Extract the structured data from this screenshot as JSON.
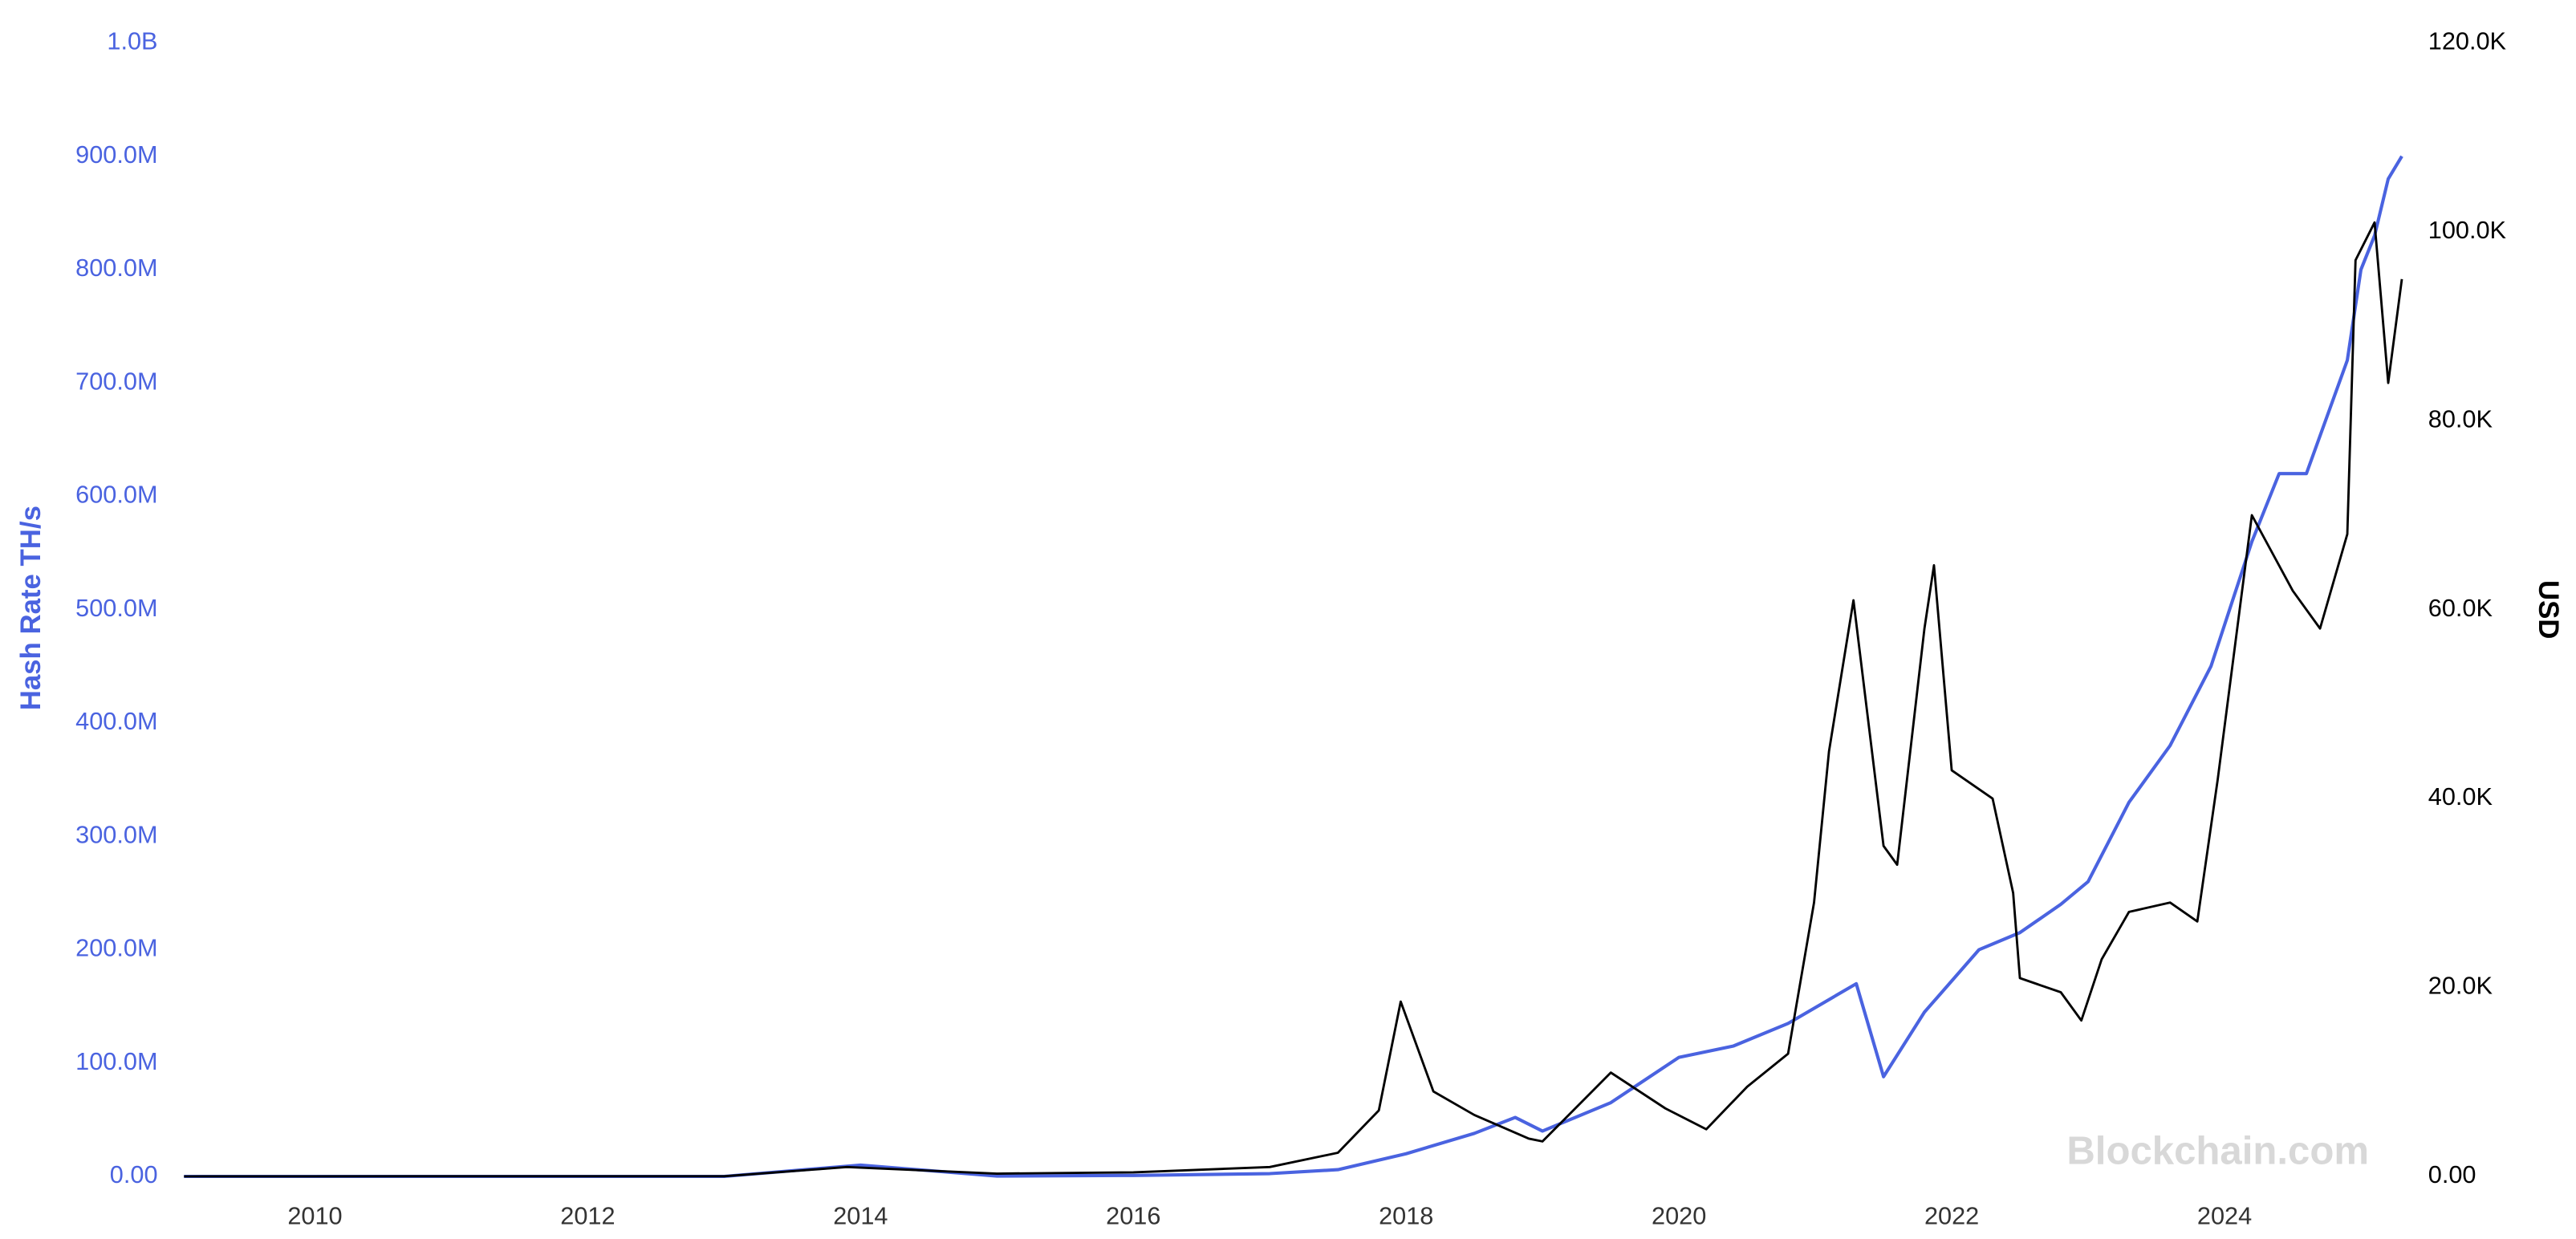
{
  "chart_data": {
    "type": "line",
    "y_label": "Hash Rate TH/s",
    "y2_label": "USD",
    "watermark": "Blockchain.com",
    "xlim": [
      2009.04,
      2025.3
    ],
    "xticks": [
      2010,
      2012,
      2014,
      2016,
      2018,
      2020,
      2022,
      2024
    ],
    "ylim": [
      0,
      1000000000
    ],
    "yticks": [
      {
        "value": 0,
        "label": "0.00"
      },
      {
        "value": 100000000,
        "label": "100.0M"
      },
      {
        "value": 200000000,
        "label": "200.0M"
      },
      {
        "value": 300000000,
        "label": "300.0M"
      },
      {
        "value": 400000000,
        "label": "400.0M"
      },
      {
        "value": 500000000,
        "label": "500.0M"
      },
      {
        "value": 600000000,
        "label": "600.0M"
      },
      {
        "value": 700000000,
        "label": "700.0M"
      },
      {
        "value": 800000000,
        "label": "800.0M"
      },
      {
        "value": 900000000,
        "label": "900.0M"
      },
      {
        "value": 1000000000,
        "label": "1.0B"
      }
    ],
    "y2lim": [
      0,
      120000
    ],
    "y2ticks": [
      {
        "value": 0,
        "label": "0.00"
      },
      {
        "value": 20000,
        "label": "20.0K"
      },
      {
        "value": 40000,
        "label": "40.0K"
      },
      {
        "value": 60000,
        "label": "60.0K"
      },
      {
        "value": 80000,
        "label": "80.0K"
      },
      {
        "value": 100000,
        "label": "100.0K"
      },
      {
        "value": 120000,
        "label": "120.0K"
      }
    ],
    "series": [
      {
        "name": "Hash Rate TH/s",
        "color": "#4a63e0",
        "axis": "y",
        "x": [
          2009.04,
          2013.0,
          2014.0,
          2015.0,
          2016.0,
          2017.0,
          2017.5,
          2018.0,
          2018.5,
          2018.8,
          2019.0,
          2019.5,
          2020.0,
          2020.4,
          2020.8,
          2021.3,
          2021.5,
          2021.8,
          2022.2,
          2022.5,
          2022.8,
          2023.0,
          2023.3,
          2023.6,
          2023.9,
          2024.2,
          2024.4,
          2024.6,
          2024.9,
          2025.0,
          2025.1,
          2025.2,
          2025.3
        ],
        "values": [
          0,
          20000,
          10000000,
          300000,
          800000,
          2500000,
          6000000,
          20000000,
          38000000,
          52000000,
          40000000,
          65000000,
          105000000,
          115000000,
          135000000,
          170000000,
          88000000,
          145000000,
          200000000,
          215000000,
          240000000,
          260000000,
          330000000,
          380000000,
          450000000,
          560000000,
          620000000,
          620000000,
          720000000,
          800000000,
          830000000,
          880000000,
          900000000
        ]
      },
      {
        "name": "USD",
        "color": "#000000",
        "axis": "y2",
        "x": [
          2009.04,
          2011.5,
          2013.0,
          2013.9,
          2014.5,
          2015.0,
          2016.0,
          2017.0,
          2017.5,
          2017.8,
          2017.96,
          2018.2,
          2018.5,
          2018.9,
          2019.0,
          2019.5,
          2019.9,
          2020.2,
          2020.5,
          2020.8,
          2020.99,
          2021.1,
          2021.28,
          2021.5,
          2021.6,
          2021.8,
          2021.87,
          2022.0,
          2022.3,
          2022.45,
          2022.5,
          2022.8,
          2022.95,
          2023.1,
          2023.3,
          2023.6,
          2023.8,
          2023.95,
          2024.2,
          2024.5,
          2024.7,
          2024.9,
          2024.96,
          2025.1,
          2025.2,
          2025.3
        ],
        "values": [
          0,
          15,
          13,
          1000,
          600,
          300,
          430,
          1000,
          2500,
          7000,
          18500,
          9000,
          6500,
          4000,
          3700,
          11000,
          7200,
          5000,
          9500,
          13000,
          29000,
          45000,
          61000,
          35000,
          33000,
          58000,
          64700,
          43000,
          40000,
          30000,
          21000,
          19500,
          16500,
          23000,
          28000,
          29000,
          27000,
          42000,
          70000,
          62000,
          58000,
          68000,
          97000,
          101000,
          84000,
          95000
        ]
      }
    ]
  }
}
